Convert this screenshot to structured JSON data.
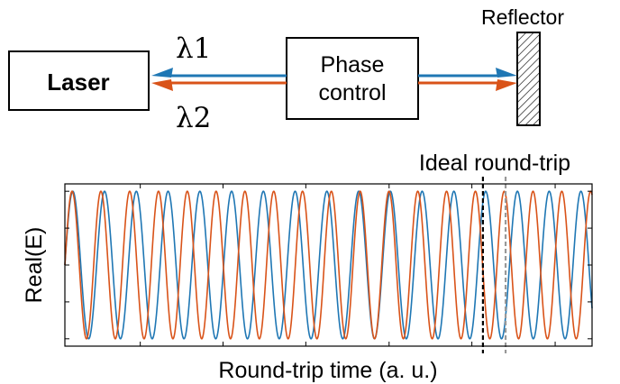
{
  "diagram": {
    "laser_label": "Laser",
    "phase_control_line1": "Phase",
    "phase_control_line2": "control",
    "reflector_label": "Reflector",
    "lambda1_label": "λ1",
    "lambda2_label": "λ2",
    "colors": {
      "lambda1": "#1f77b4",
      "lambda2": "#d95319",
      "outline": "#000000",
      "ideal_marker": "#000000",
      "shifted_marker": "#999999"
    }
  },
  "chart_data": {
    "type": "line",
    "title": "",
    "xlabel": "Round-trip time (a. u.)",
    "ylabel": "Real(E)",
    "annotation": "Ideal round-trip",
    "x_range": [
      0,
      1
    ],
    "ylim": [
      -1.1,
      1.1
    ],
    "grid": false,
    "series": [
      {
        "color": "#1f77b4",
        "cycles": 16.6,
        "amplitude": 1.0
      },
      {
        "color": "#d95319",
        "cycles": 18.3,
        "amplitude": 1.0
      }
    ],
    "markers": [
      {
        "style": "dashed",
        "color": "#000000",
        "x": 0.793
      },
      {
        "style": "dashed",
        "color": "#999999",
        "x": 0.836
      }
    ]
  }
}
